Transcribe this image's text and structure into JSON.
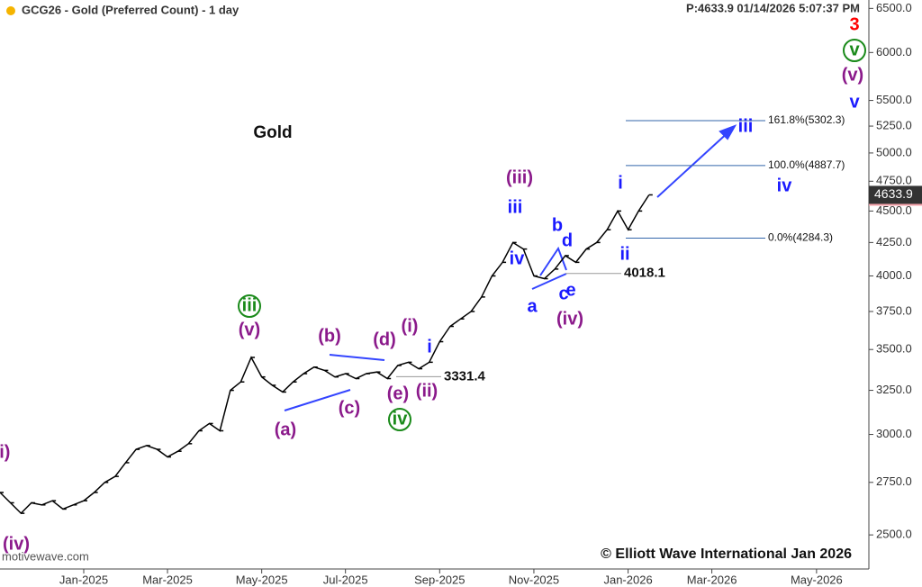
{
  "chart_data": {
    "type": "line",
    "title": "GCG26 - Gold (Preferred Count) - 1 day",
    "status": "P:4633.9  01/14/2026 5:07:37 PM",
    "subtitle": "Gold",
    "footer": "© Elliott Wave International Jan 2026",
    "source": "motivewave.com",
    "log_scale": true,
    "ylim": [
      2350,
      6600
    ],
    "yticks": [
      {
        "value": 2500,
        "label": "2500.0"
      },
      {
        "value": 2750,
        "label": "2750.0"
      },
      {
        "value": 3000,
        "label": "3000.0"
      },
      {
        "value": 3250,
        "label": "3250.0"
      },
      {
        "value": 3500,
        "label": "3500.0"
      },
      {
        "value": 3750,
        "label": "3750.0"
      },
      {
        "value": 4000,
        "label": "4000.0"
      },
      {
        "value": 4250,
        "label": "4250.0"
      },
      {
        "value": 4500,
        "label": "4500.0"
      },
      {
        "value": 4750,
        "label": "4750.0"
      },
      {
        "value": 5000,
        "label": "5000.0"
      },
      {
        "value": 5250,
        "label": "5250.0"
      },
      {
        "value": 5500,
        "label": "5500.0"
      },
      {
        "value": 6000,
        "label": "6000.0"
      },
      {
        "value": 6500,
        "label": "6500.0"
      }
    ],
    "categories": [
      null,
      null,
      null,
      null,
      null,
      null,
      null,
      null,
      "Jan-2025",
      null,
      null,
      null,
      null,
      null,
      null,
      null,
      "Mar-2025",
      null,
      null,
      null,
      null,
      null,
      null,
      null,
      null,
      "May-2025",
      null,
      null,
      null,
      null,
      null,
      null,
      null,
      "Jul-2025",
      null,
      null,
      null,
      null,
      null,
      null,
      null,
      null,
      "Sep-2025",
      null,
      null,
      null,
      null,
      null,
      null,
      null,
      null,
      "Nov-2025",
      null,
      null,
      null,
      null,
      null,
      null,
      null,
      null,
      "Jan-2026",
      null,
      null,
      null,
      null,
      null,
      null,
      null,
      "Mar-2026",
      null,
      null,
      null,
      null,
      null,
      null,
      null,
      null,
      null,
      "May-2026",
      null,
      null,
      null,
      null
    ],
    "series": [
      {
        "color": "#000000",
        "values": [
          2700,
          2650,
          2600,
          2650,
          2640,
          2660,
          2620,
          2640,
          2660,
          2700,
          2750,
          2780,
          2850,
          2920,
          2940,
          2920,
          2880,
          2910,
          2950,
          3020,
          3060,
          3020,
          3250,
          3300,
          3450,
          3330,
          3280,
          3240,
          3300,
          3350,
          3390,
          3370,
          3330,
          3350,
          3320,
          3350,
          3360,
          3320,
          3400,
          3420,
          3380,
          3420,
          3550,
          3650,
          3700,
          3750,
          3850,
          4000,
          4100,
          4250,
          4200,
          4000,
          3980,
          4050,
          4150,
          4100,
          4200,
          4250,
          4350,
          4500,
          4350,
          4500,
          4633.9,
          null,
          null,
          null,
          null,
          null,
          null,
          null,
          null,
          null,
          null,
          null,
          null,
          null,
          null,
          null,
          null,
          null,
          null,
          null,
          null
        ]
      }
    ],
    "last_price": {
      "value": 4633.9,
      "label": "4633.9"
    },
    "levels": [
      {
        "value": 5302.3,
        "label": "161.8%(5302.3)"
      },
      {
        "value": 4887.7,
        "label": "100.0%(4887.7)"
      },
      {
        "value": 4284.3,
        "label": "0.0%(4284.3)"
      }
    ],
    "supports": [
      {
        "value": 3331.4,
        "label": "3331.4"
      },
      {
        "value": 4018.1,
        "label": "4018.1"
      }
    ],
    "annotations": [
      {
        "text": "(i)",
        "color": "#8b1a8b"
      },
      {
        "text": "(iv)",
        "color": "#8b1a8b"
      },
      {
        "text": "iii",
        "color": "#1a8a1a"
      },
      {
        "text": "(v)",
        "color": "#8b1a8b"
      },
      {
        "text": "(b)",
        "color": "#8b1a8b"
      },
      {
        "text": "(c)",
        "color": "#8b1a8b"
      },
      {
        "text": "(a)",
        "color": "#8b1a8b"
      },
      {
        "text": "(d)",
        "color": "#8b1a8b"
      },
      {
        "text": "(i)",
        "color": "#8b1a8b"
      },
      {
        "text": "(e)",
        "color": "#8b1a8b"
      },
      {
        "text": "(ii)",
        "color": "#8b1a8b"
      },
      {
        "text": "i",
        "color": "#1a1aff"
      },
      {
        "text": "iv",
        "color": "#1a8a1a"
      },
      {
        "text": "(iii)",
        "color": "#8b1a8b"
      },
      {
        "text": "iii",
        "color": "#1a1aff"
      },
      {
        "text": "iv",
        "color": "#1a1aff"
      },
      {
        "text": "a",
        "color": "#1a1aff"
      },
      {
        "text": "b",
        "color": "#1a1aff"
      },
      {
        "text": "c",
        "color": "#1a1aff"
      },
      {
        "text": "d",
        "color": "#1a1aff"
      },
      {
        "text": "e",
        "color": "#1a1aff"
      },
      {
        "text": "(iv)",
        "color": "#8b1a8b"
      },
      {
        "text": "i",
        "color": "#1a1aff"
      },
      {
        "text": "ii",
        "color": "#1a1aff"
      },
      {
        "text": "iii",
        "color": "#1a1aff"
      },
      {
        "text": "iv",
        "color": "#1a1aff"
      },
      {
        "text": "v",
        "color": "#1a1aff"
      },
      {
        "text": "(v)",
        "color": "#8b1a8b"
      },
      {
        "text": "v",
        "color": "#1a8a1a"
      },
      {
        "text": "3",
        "color": "#ff0000"
      }
    ]
  }
}
